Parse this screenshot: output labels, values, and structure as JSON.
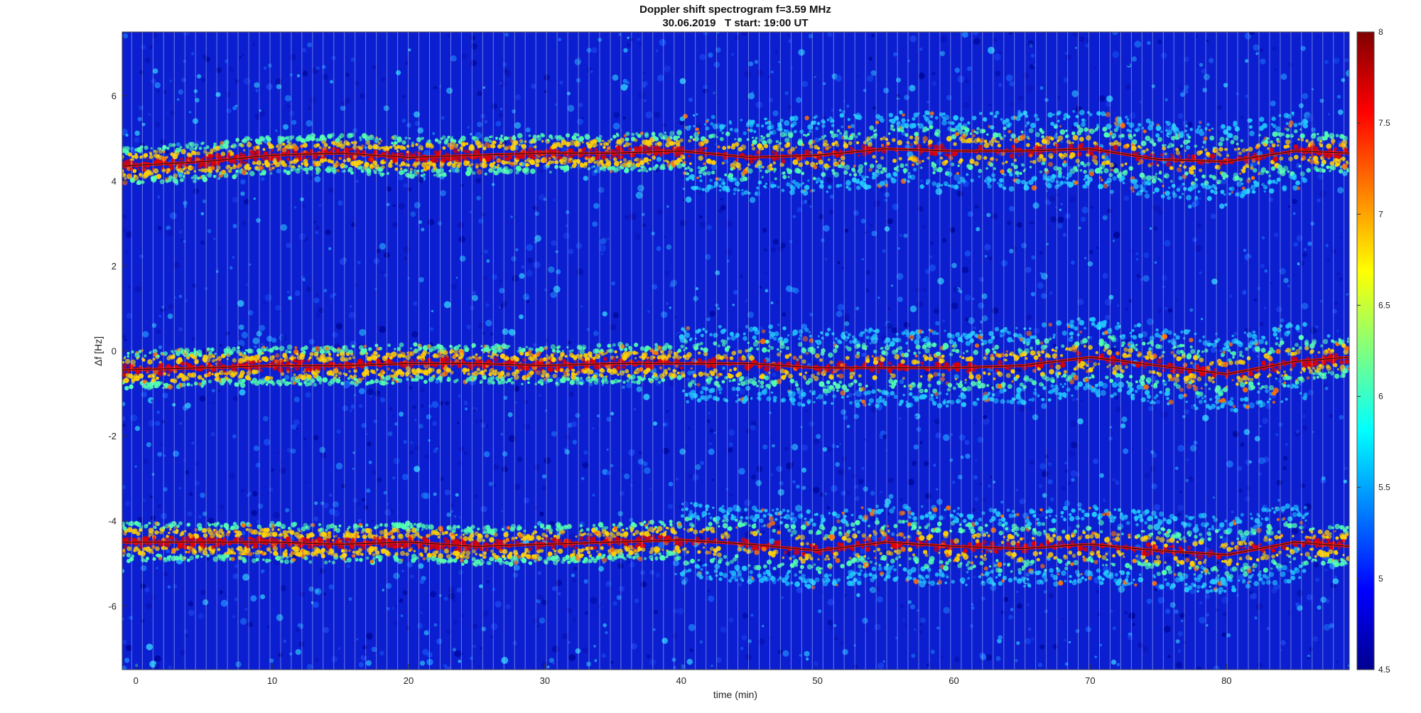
{
  "chart_data": {
    "type": "heatmap",
    "title": "Doppler shift spectrogram f=3.59 MHz",
    "subtitle": "30.06.2019   T start: 19:00 UT",
    "xlabel": "time (min)",
    "ylabel": "Δf [Hz]",
    "xlim": [
      -1,
      89
    ],
    "ylim": [
      -7.5,
      7.5
    ],
    "xticks": [
      0,
      10,
      20,
      30,
      40,
      50,
      60,
      70,
      80
    ],
    "xtick_labels": [
      "0",
      "10",
      "20",
      "30",
      "40",
      "50",
      "60",
      "70",
      "80"
    ],
    "yticks": [
      6,
      4,
      2,
      0,
      -2,
      -4,
      -6
    ],
    "ytick_labels": [
      "6",
      "4",
      "2",
      "0",
      "-2",
      "-4",
      "-6"
    ],
    "colorbar": {
      "colormap": "jet",
      "range": [
        4.5,
        8
      ],
      "ticks": [
        8,
        7.5,
        7,
        6.5,
        6,
        5.5,
        5,
        4.5
      ],
      "tick_labels": [
        "8",
        "7.5",
        "7",
        "6.5",
        "6",
        "5.5",
        "5",
        "4.5"
      ]
    },
    "traces": [
      {
        "x": [
          -1,
          5,
          10,
          15,
          20,
          25,
          30,
          35,
          40,
          45,
          50,
          55,
          60,
          65,
          70,
          75,
          80,
          85,
          89
        ],
        "y": [
          4.35,
          4.45,
          4.6,
          4.65,
          4.55,
          4.6,
          4.65,
          4.65,
          4.7,
          4.55,
          4.6,
          4.75,
          4.7,
          4.7,
          4.75,
          4.5,
          4.45,
          4.7,
          4.65
        ]
      },
      {
        "x": [
          -1,
          5,
          10,
          15,
          20,
          25,
          30,
          35,
          40,
          45,
          50,
          55,
          60,
          65,
          70,
          75,
          80,
          85,
          89
        ],
        "y": [
          -0.45,
          -0.4,
          -0.35,
          -0.35,
          -0.3,
          -0.3,
          -0.35,
          -0.3,
          -0.3,
          -0.3,
          -0.4,
          -0.4,
          -0.4,
          -0.35,
          -0.15,
          -0.35,
          -0.55,
          -0.25,
          -0.15
        ]
      },
      {
        "x": [
          -1,
          5,
          10,
          15,
          20,
          25,
          30,
          35,
          40,
          45,
          50,
          55,
          60,
          65,
          70,
          75,
          80,
          85,
          89
        ],
        "y": [
          -4.5,
          -4.5,
          -4.5,
          -4.55,
          -4.5,
          -4.6,
          -4.55,
          -4.5,
          -4.45,
          -4.55,
          -4.7,
          -4.5,
          -4.6,
          -4.65,
          -4.55,
          -4.7,
          -4.8,
          -4.5,
          -4.6
        ]
      }
    ],
    "detection_line_color": "#111111"
  }
}
